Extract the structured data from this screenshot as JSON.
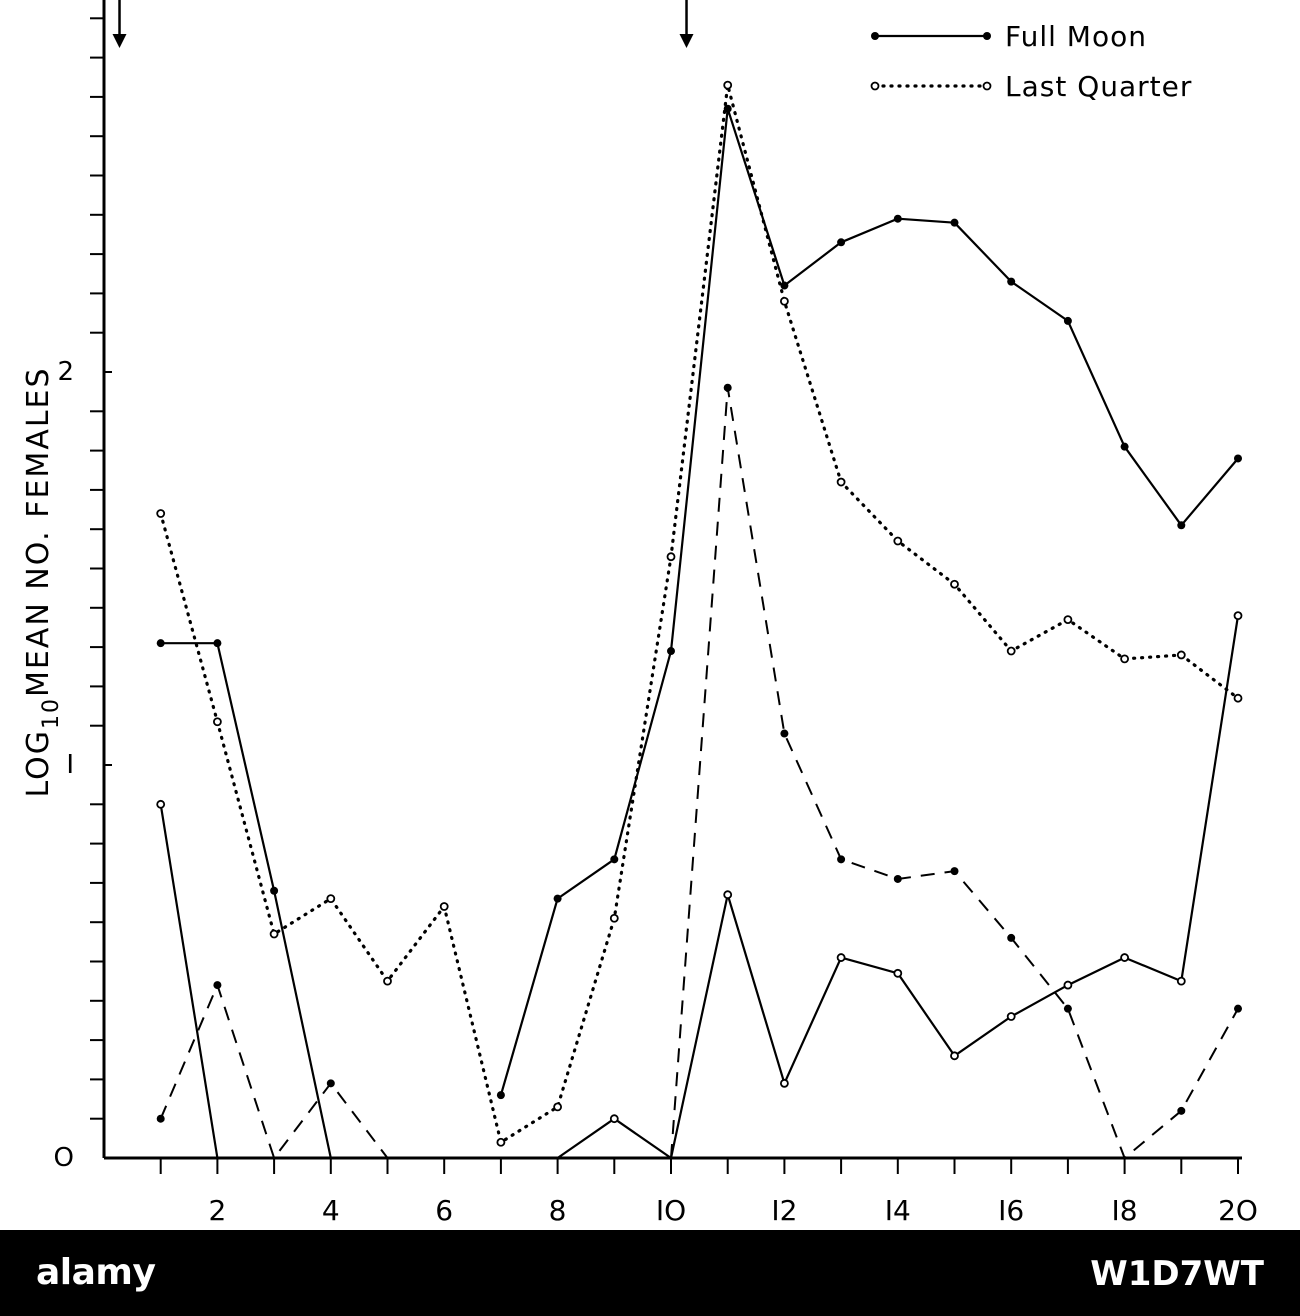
{
  "chart_data": {
    "type": "line",
    "ylabel": "LOG",
    "ylabel_sub": "10",
    "ylabel_rest": "MEAN NO. FEMALES",
    "x": [
      1,
      2,
      3,
      4,
      5,
      6,
      7,
      8,
      9,
      10,
      11,
      12,
      13,
      14,
      15,
      16,
      17,
      18,
      19,
      20
    ],
    "xlim": [
      0,
      20
    ],
    "ylim": [
      0,
      2.9
    ],
    "x_ticks": [
      2,
      4,
      6,
      8,
      10,
      12,
      14,
      16,
      18,
      20
    ],
    "x_tick_labels": [
      "2",
      "4",
      "6",
      "8",
      "IO",
      "I2",
      "I4",
      "I6",
      "I8",
      "2O"
    ],
    "y_ticks": [
      0,
      1,
      2
    ],
    "y_tick_labels": [
      "O",
      "I",
      "2"
    ],
    "arrows_x": [
      0.45,
      10.45
    ],
    "legend_position": "top-right",
    "series": [
      {
        "name": "Full Moon",
        "style": "solid-filled",
        "values": [
          1.31,
          1.31,
          0.68,
          0,
          null,
          null,
          0.16,
          0.66,
          0.76,
          1.29,
          2.67,
          2.22,
          2.33,
          2.39,
          2.38,
          2.23,
          2.13,
          1.81,
          1.61,
          1.78
        ]
      },
      {
        "name": "Last Quarter",
        "style": "dotted-open",
        "values": [
          1.64,
          1.11,
          0.57,
          0.66,
          0.45,
          0.64,
          0.04,
          0.13,
          0.61,
          1.53,
          2.73,
          2.18,
          1.72,
          1.57,
          1.46,
          1.29,
          1.37,
          1.27,
          1.28,
          1.17
        ]
      },
      {
        "style": "dashed-filled",
        "values": [
          0.1,
          0.44,
          0,
          0.19,
          0,
          0,
          null,
          null,
          null,
          0,
          1.96,
          1.08,
          0.76,
          0.71,
          0.73,
          0.56,
          0.38,
          0,
          0.12,
          0.38
        ]
      },
      {
        "style": "solid-open",
        "values": [
          0.9,
          0,
          null,
          null,
          null,
          null,
          null,
          0,
          0.1,
          0,
          0.67,
          0.19,
          0.51,
          0.47,
          0.26,
          0.36,
          0.44,
          0.51,
          0.45,
          1.38
        ]
      }
    ]
  },
  "footer": {
    "logo": "alamy",
    "stock_id": "W1D7WT"
  }
}
